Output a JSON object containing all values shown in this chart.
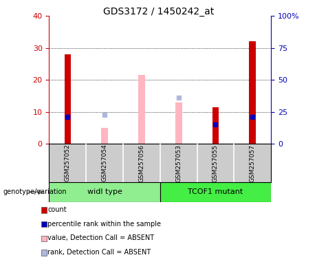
{
  "title": "GDS3172 / 1450242_at",
  "samples": [
    "GSM257052",
    "GSM257054",
    "GSM257056",
    "GSM257053",
    "GSM257055",
    "GSM257057"
  ],
  "group1_name": "widl type",
  "group1_color": "#90EE90",
  "group1_indices": [
    0,
    1,
    2
  ],
  "group2_name": "TCOF1 mutant",
  "group2_color": "#44EE44",
  "group2_indices": [
    3,
    4,
    5
  ],
  "red_bars": [
    28,
    0,
    0,
    0,
    11.5,
    32
  ],
  "blue_squares_left": [
    21,
    0,
    0,
    0,
    15,
    21
  ],
  "pink_bars": [
    0,
    5,
    21.5,
    13,
    0,
    0
  ],
  "lightblue_squares_left": [
    0,
    9,
    0,
    14.5,
    0,
    0
  ],
  "left_ylim": [
    0,
    40
  ],
  "right_ylim": [
    0,
    100
  ],
  "left_yticks": [
    0,
    10,
    20,
    30,
    40
  ],
  "right_yticks": [
    0,
    25,
    50,
    75,
    100
  ],
  "right_yticklabels": [
    "0",
    "25",
    "50",
    "75",
    "100%"
  ],
  "left_color": "#cc0000",
  "right_color": "#0000bb",
  "bg_color": "#cccccc",
  "legend_items": [
    {
      "label": "count",
      "color": "#cc0000"
    },
    {
      "label": "percentile rank within the sample",
      "color": "#0000bb"
    },
    {
      "label": "value, Detection Call = ABSENT",
      "color": "#ffb6c1"
    },
    {
      "label": "rank, Detection Call = ABSENT",
      "color": "#b0b8e0"
    }
  ]
}
